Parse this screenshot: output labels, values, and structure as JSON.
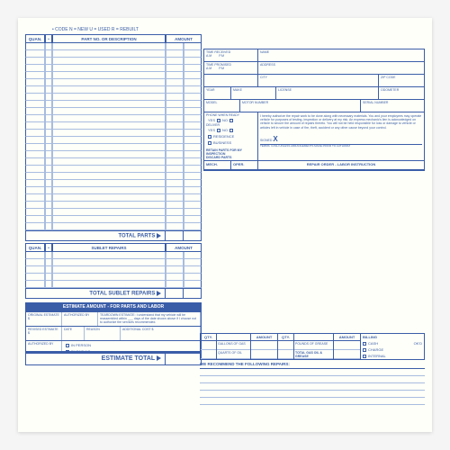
{
  "colors": {
    "ink": "#3a5da8",
    "paper": "#fefff8",
    "rule_light": "#a8bce0",
    "header_bg": "#3a5da8",
    "header_fg": "#ffffff"
  },
  "code_legend": "•  CODE   N = NEW   U = USED   R = REBUILT",
  "parts": {
    "headers": {
      "quan": "QUAN.",
      "bullet": "•",
      "desc": "PART NO. OR DESCRIPTION",
      "amount": "AMOUNT"
    },
    "row_count": 26,
    "total_label": "TOTAL PARTS"
  },
  "sublet": {
    "headers": {
      "quan": "QUAN.",
      "bullet": "•",
      "desc": "SUBLET REPAIRS",
      "amount": "AMOUNT"
    },
    "row_count": 5,
    "total_label": "TOTAL SUBLET REPAIRS"
  },
  "customer": {
    "time_received": "TIME RECEIVED",
    "name": "NAME",
    "am": "A.M",
    "pm": "P.M",
    "time_promised": "TIME PROMISED",
    "address": "ADDRESS",
    "city": "CITY",
    "zip": "ZIP CODE",
    "year": "YEAR",
    "make": "MAKE",
    "license": "LICENSE",
    "odometer": "ODOMETER",
    "model": "MODEL",
    "motor_no": "MOTOR NUMBER",
    "serial_no": "SERIAL NUMBER",
    "phone_when_ready": "PHONE WHEN READY",
    "deliver": "DELIVER",
    "yes": "YES",
    "no": "NO",
    "residence": "RESIDENCE",
    "business": "BUSINESS",
    "retain": "RETAIN PARTS FOR MY INSPECTION",
    "discard": "DISCARD PARTS",
    "signed": "SIGNED",
    "x": "X",
    "terms": "TERMS: CASH UNLESS ARRANGEMENTS MADE PRIOR TO AUTHORIZ",
    "mech": "MECH.",
    "oper": "OPER.",
    "repair_order": "REPAIR ORDER - LABOR INSTRUCTION",
    "auth_text": "I hereby authorize the repair work to be done along with necessary materials. You and your employees may operate vehicle for purposes of testing, inspection or delivery at my risk. An express mechanic's lien is acknowledged on vehicle to secure the amount of repairs thereto. You will not be held responsible for loss or damage to vehicle or articles left in vehicle in case of fire, theft, accident or any other cause beyond your control."
  },
  "estimate": {
    "header": "ESTIMATE AMOUNT - FOR PARTS AND LABOR",
    "original": "ORIGINAL ESTIMATE $",
    "authorized_by": "AUTHORIZED BY",
    "teardown": "TEARDOWN ESTIMATE: I understand that my vehicle will be reassembled within ___ days of the date shown above if I choose not to authorize the services recommended.",
    "revised": "REVISED ESTIMATE $",
    "date": "DATE",
    "reason": "REASON",
    "additional_cost": "ADDITIONAL COST $",
    "in_person": "IN PERSON",
    "phone": "PHONE NO.",
    "total_label": "ESTIMATE TOTAL"
  },
  "recommend": {
    "header": "WE RECOMMEND THE FOLLOWING REPAIRS:",
    "qty": "QTY.",
    "amount": "AMOUNT",
    "gallons_gas": "GALLONS OF GAS",
    "quarts_oil": "QUARTS OF OIL",
    "pounds_grease": "POUNDS OF GREASE",
    "total_gas": "TOTAL GAS OIL & GREASE",
    "billing": "BILLING",
    "cash": "CASH",
    "charge": "CHARGE",
    "internal": "INTERNAL",
    "okd": "OK'D",
    "line_count": 5
  }
}
